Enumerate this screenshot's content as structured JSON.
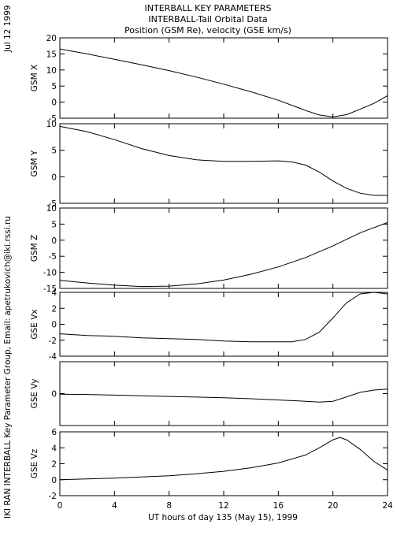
{
  "header": {
    "title_line1": "INTERBALL KEY PARAMETERS",
    "title_line2": "INTERBALL-Tail Orbital Data",
    "title_line3": "Position (GSM Re), velocity (GSE km/s)"
  },
  "side_text": {
    "date": "Jul 12 1999",
    "credit": "IKI RAN INTERBALL Key Parameter Group, Email: apetrukovich@iki.rssi.ru"
  },
  "chart_data": {
    "type": "line",
    "xlabel": "UT hours of day 135 (May 15), 1999",
    "xlim": [
      0,
      24
    ],
    "xticks": [
      0,
      4,
      8,
      12,
      16,
      20,
      24
    ],
    "panels": [
      {
        "ylabel": "GSM X",
        "ylim": [
          -5,
          20
        ],
        "yticks": [
          -5,
          0,
          5,
          10,
          15,
          20
        ],
        "x": [
          0,
          2,
          4,
          6,
          8,
          10,
          12,
          14,
          16,
          18,
          19,
          20,
          21,
          22,
          23,
          24
        ],
        "y": [
          16.5,
          15.0,
          13.3,
          11.6,
          9.8,
          7.8,
          5.6,
          3.2,
          0.6,
          -2.6,
          -4.0,
          -4.6,
          -3.9,
          -2.2,
          -0.4,
          2.0
        ]
      },
      {
        "ylabel": "GSM Y",
        "ylim": [
          -5,
          10
        ],
        "yticks": [
          -5,
          0,
          5,
          10
        ],
        "x": [
          0,
          2,
          4,
          6,
          8,
          10,
          12,
          14,
          16,
          17,
          18,
          19,
          20,
          21,
          22,
          23,
          24
        ],
        "y": [
          9.5,
          8.5,
          7.0,
          5.3,
          4.0,
          3.2,
          2.9,
          2.9,
          3.0,
          2.8,
          2.2,
          0.9,
          -0.8,
          -2.2,
          -3.1,
          -3.5,
          -3.5
        ]
      },
      {
        "ylabel": "GSM Z",
        "ylim": [
          -15,
          10
        ],
        "yticks": [
          -15,
          -10,
          -5,
          0,
          5,
          10
        ],
        "x": [
          0,
          2,
          4,
          6,
          8,
          10,
          12,
          14,
          16,
          18,
          20,
          22,
          24
        ],
        "y": [
          -12.5,
          -13.3,
          -14.0,
          -14.4,
          -14.3,
          -13.6,
          -12.4,
          -10.6,
          -8.3,
          -5.4,
          -1.8,
          2.3,
          5.5
        ]
      },
      {
        "ylabel": "GSE Vx",
        "ylim": [
          -4,
          4
        ],
        "yticks": [
          -4,
          -2,
          0,
          2,
          4
        ],
        "x": [
          0,
          2,
          4,
          6,
          8,
          10,
          12,
          14,
          16,
          17,
          18,
          19,
          20,
          21,
          22,
          23,
          24
        ],
        "y": [
          -1.2,
          -1.4,
          -1.5,
          -1.7,
          -1.8,
          -1.9,
          -2.1,
          -2.2,
          -2.2,
          -2.2,
          -1.9,
          -1.0,
          0.8,
          2.7,
          3.8,
          4.0,
          3.8
        ]
      },
      {
        "ylabel": "GSE Vy",
        "ylim": [
          -2.5,
          2.5
        ],
        "yticks": [
          0
        ],
        "x": [
          0,
          2,
          4,
          6,
          8,
          10,
          12,
          14,
          16,
          18,
          19,
          20,
          21,
          22,
          23,
          24
        ],
        "y": [
          -0.05,
          -0.07,
          -0.12,
          -0.17,
          -0.22,
          -0.27,
          -0.32,
          -0.4,
          -0.5,
          -0.6,
          -0.66,
          -0.6,
          -0.25,
          0.1,
          0.28,
          0.35
        ]
      },
      {
        "ylabel": "GSE Vz",
        "ylim": [
          -2,
          6
        ],
        "yticks": [
          -2,
          0,
          2,
          4,
          6
        ],
        "x": [
          0,
          2,
          4,
          6,
          8,
          10,
          12,
          14,
          16,
          18,
          19,
          20,
          20.5,
          21,
          22,
          23,
          24
        ],
        "y": [
          0.0,
          0.1,
          0.2,
          0.35,
          0.5,
          0.75,
          1.05,
          1.5,
          2.1,
          3.1,
          4.0,
          5.0,
          5.3,
          5.0,
          3.8,
          2.3,
          1.2
        ]
      }
    ],
    "grid": false,
    "legend": "none",
    "colors": {
      "line": "#000000",
      "background": "#ffffff"
    }
  }
}
